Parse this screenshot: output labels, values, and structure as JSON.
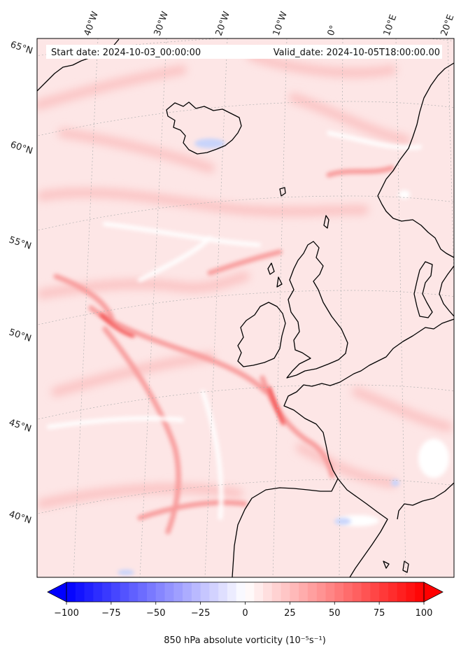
{
  "header": {
    "start_date": "Start date: 2024-10-03_00:00:00",
    "valid_date": "Valid_date: 2024-10-05T18:00:00.00"
  },
  "longitude_labels": [
    "40°W",
    "30°W",
    "20°W",
    "10°W",
    "0°",
    "10°E",
    "20°E"
  ],
  "latitude_labels": [
    "65°N",
    "60°N",
    "55°N",
    "50°N",
    "45°N",
    "40°N"
  ],
  "colorbar": {
    "title": "850 hPa absolute vorticity (10⁻⁵s⁻¹)",
    "ticks": [
      "−100",
      "−75",
      "−50",
      "−25",
      "0",
      "25",
      "50",
      "75",
      "100"
    ],
    "vmin": -100,
    "vmax": 100,
    "levels": 40,
    "color_low": "#0000ff",
    "color_mid": "#ffffff",
    "color_high": "#ff0000"
  },
  "colors": {
    "coastline": "#000000",
    "field_background": "#fde6e6",
    "gridline": "#b0b0b0"
  }
}
